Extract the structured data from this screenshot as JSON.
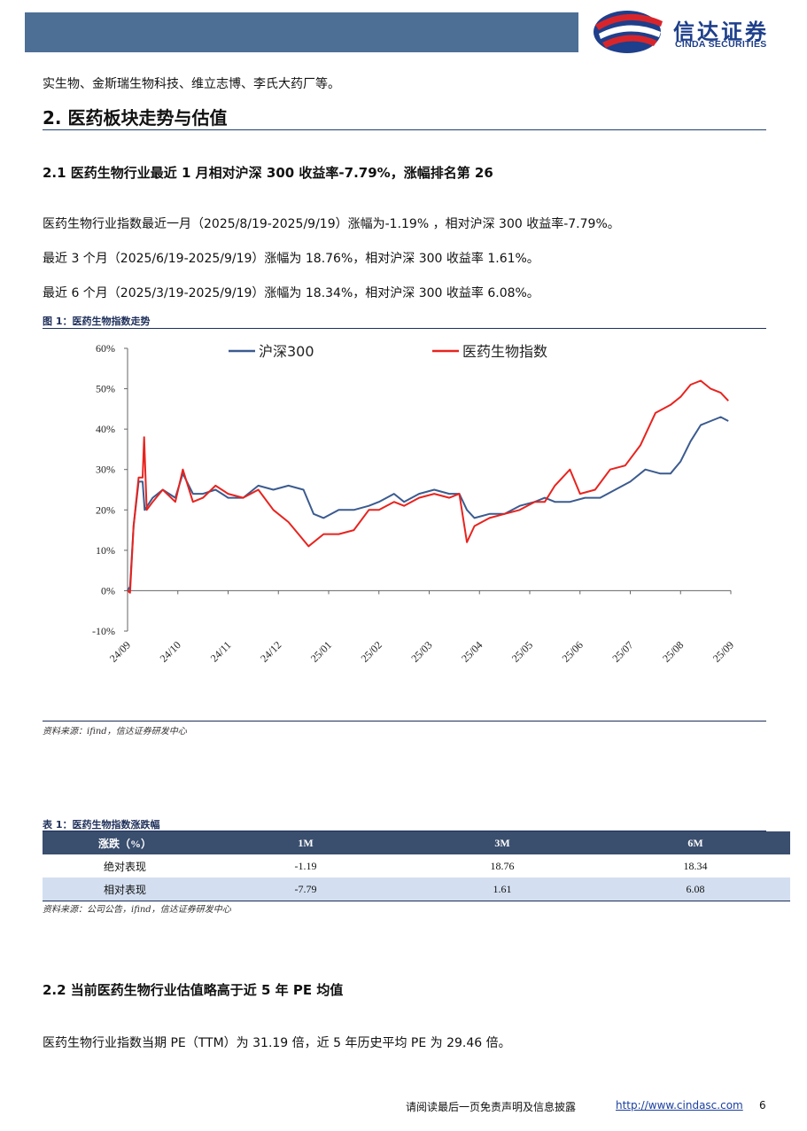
{
  "header": {
    "logo_cn": "信达证券",
    "logo_en": "CINDA SECURITIES"
  },
  "intro_line": "实生物、金斯瑞生物科技、维立志博、李氏大药厂等。",
  "section_title": "2. 医药板块走势与估值",
  "sub1_title": "2.1 医药生物行业最近 1 月相对沪深 300 收益率-7.79%，涨幅排名第 26",
  "para1": "医药生物行业指数最近一月（2025/8/19-2025/9/19）涨幅为-1.19% ，相对沪深 300 收益率-7.79%。",
  "para2": "最近 3 个月（2025/6/19-2025/9/19）涨幅为 18.76%，相对沪深 300 收益率 1.61%。",
  "para3": "最近 6 个月（2025/3/19-2025/9/19）涨幅为 18.34%，相对沪深 300 收益率 6.08%。",
  "figure_caption": "图 1：医药生物指数走势",
  "figure_source": "资料来源：ifind，信达证券研发中心",
  "chart_data": {
    "type": "line",
    "x": [
      "24/09",
      "24/10",
      "24/11",
      "24/12",
      "25/01",
      "25/02",
      "25/03",
      "25/04",
      "25/05",
      "25/06",
      "25/07",
      "25/08",
      "25/09"
    ],
    "ylim": [
      -10,
      60
    ],
    "yticks": [
      "-10%",
      "0%",
      "10%",
      "20%",
      "30%",
      "40%",
      "50%",
      "60%"
    ],
    "legend_position": "top",
    "grid": false,
    "series": [
      {
        "name": "沪深300",
        "color": "#3b5b8f",
        "points": [
          [
            0,
            0
          ],
          [
            0.05,
            1
          ],
          [
            0.12,
            16
          ],
          [
            0.22,
            27
          ],
          [
            0.3,
            27
          ],
          [
            0.34,
            20
          ],
          [
            0.5,
            23
          ],
          [
            0.7,
            25
          ],
          [
            0.95,
            23
          ],
          [
            1.1,
            29
          ],
          [
            1.3,
            24
          ],
          [
            1.5,
            24
          ],
          [
            1.75,
            25
          ],
          [
            2,
            23
          ],
          [
            2.3,
            23
          ],
          [
            2.6,
            26
          ],
          [
            2.9,
            25
          ],
          [
            3.2,
            26
          ],
          [
            3.5,
            25
          ],
          [
            3.7,
            19
          ],
          [
            3.9,
            18
          ],
          [
            4.2,
            20
          ],
          [
            4.5,
            20
          ],
          [
            4.8,
            21
          ],
          [
            5,
            22
          ],
          [
            5.3,
            24
          ],
          [
            5.5,
            22
          ],
          [
            5.8,
            24
          ],
          [
            6.1,
            25
          ],
          [
            6.4,
            24
          ],
          [
            6.6,
            24
          ],
          [
            6.75,
            20
          ],
          [
            6.9,
            18
          ],
          [
            7.2,
            19
          ],
          [
            7.5,
            19
          ],
          [
            7.8,
            21
          ],
          [
            8.1,
            22
          ],
          [
            8.3,
            23
          ],
          [
            8.5,
            22
          ],
          [
            8.8,
            22
          ],
          [
            9.1,
            23
          ],
          [
            9.4,
            23
          ],
          [
            9.7,
            25
          ],
          [
            10,
            27
          ],
          [
            10.3,
            30
          ],
          [
            10.6,
            29
          ],
          [
            10.8,
            29
          ],
          [
            11,
            32
          ],
          [
            11.2,
            37
          ],
          [
            11.4,
            41
          ],
          [
            11.6,
            42
          ],
          [
            11.8,
            43
          ],
          [
            11.95,
            42
          ]
        ]
      },
      {
        "name": "医药生物指数",
        "color": "#e8231e",
        "points": [
          [
            0,
            0
          ],
          [
            0.05,
            -0.5
          ],
          [
            0.12,
            16
          ],
          [
            0.22,
            28
          ],
          [
            0.3,
            28
          ],
          [
            0.33,
            38
          ],
          [
            0.38,
            20
          ],
          [
            0.5,
            22
          ],
          [
            0.7,
            25
          ],
          [
            0.95,
            22
          ],
          [
            1.1,
            30
          ],
          [
            1.3,
            22
          ],
          [
            1.5,
            23
          ],
          [
            1.75,
            26
          ],
          [
            2,
            24
          ],
          [
            2.3,
            23
          ],
          [
            2.6,
            25
          ],
          [
            2.9,
            20
          ],
          [
            3.2,
            17
          ],
          [
            3.4,
            14
          ],
          [
            3.6,
            11
          ],
          [
            3.9,
            14
          ],
          [
            4.2,
            14
          ],
          [
            4.5,
            15
          ],
          [
            4.8,
            20
          ],
          [
            5,
            20
          ],
          [
            5.3,
            22
          ],
          [
            5.5,
            21
          ],
          [
            5.8,
            23
          ],
          [
            6.1,
            24
          ],
          [
            6.4,
            23
          ],
          [
            6.6,
            24
          ],
          [
            6.75,
            12
          ],
          [
            6.9,
            16
          ],
          [
            7.2,
            18
          ],
          [
            7.5,
            19
          ],
          [
            7.8,
            20
          ],
          [
            8.1,
            22
          ],
          [
            8.3,
            22
          ],
          [
            8.5,
            26
          ],
          [
            8.8,
            30
          ],
          [
            9,
            24
          ],
          [
            9.3,
            25
          ],
          [
            9.6,
            30
          ],
          [
            9.9,
            31
          ],
          [
            10.2,
            36
          ],
          [
            10.5,
            44
          ],
          [
            10.8,
            46
          ],
          [
            11,
            48
          ],
          [
            11.2,
            51
          ],
          [
            11.4,
            52
          ],
          [
            11.6,
            50
          ],
          [
            11.8,
            49
          ],
          [
            11.95,
            47
          ]
        ]
      }
    ]
  },
  "table_caption": "表 1：医药生物指数涨跌幅",
  "table": {
    "headers": [
      "涨跌（%）",
      "1M",
      "3M",
      "6M"
    ],
    "rows": [
      [
        "绝对表现",
        "-1.19",
        "18.76",
        "18.34"
      ],
      [
        "相对表现",
        "-7.79",
        "1.61",
        "6.08"
      ]
    ]
  },
  "table_source": "资料来源：公司公告，ifind，信达证券研发中心",
  "sub2_title": "2.2 当前医药生物行业估值略高于近 5 年 PE 均值",
  "para4": "医药生物行业指数当期 PE（TTM）为 31.19 倍，近 5 年历史平均 PE 为 29.46 倍。",
  "footer": {
    "disclaimer": "请阅读最后一页免责声明及信息披露",
    "url": "http://www.cindasc.com",
    "page": "6"
  }
}
